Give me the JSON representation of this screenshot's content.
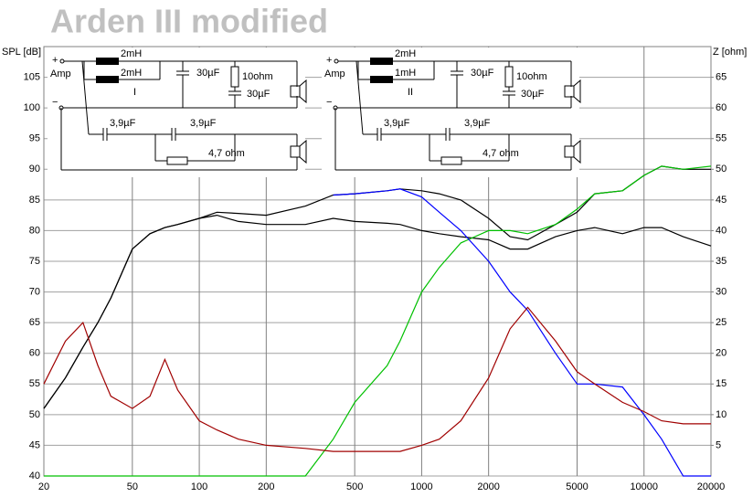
{
  "chart_data": {
    "type": "line",
    "title": "Arden  III modified",
    "y_label": "SPL [dB]",
    "y2_label": "Z [ohm]",
    "log_x": true,
    "grid": true,
    "xlim": [
      20,
      20000
    ],
    "xticks": [
      20,
      50,
      100,
      200,
      500,
      1000,
      2000,
      5000,
      10000,
      20000
    ],
    "ylim": [
      40,
      110
    ],
    "yticks": [
      40,
      45,
      50,
      55,
      60,
      65,
      70,
      75,
      80,
      85,
      90,
      95,
      100,
      105
    ],
    "y2lim": [
      0,
      70
    ],
    "y2ticks": [
      5,
      10,
      15,
      20,
      25,
      30,
      35,
      40,
      45,
      50,
      55,
      60,
      65
    ],
    "x": [
      20,
      25,
      30,
      35,
      40,
      50,
      60,
      70,
      80,
      100,
      120,
      150,
      200,
      300,
      400,
      500,
      700,
      800,
      1000,
      1200,
      1500,
      2000,
      2500,
      3000,
      4000,
      5000,
      6000,
      8000,
      10000,
      12000,
      15000,
      20000
    ],
    "series": [
      {
        "color": "#000000",
        "values": [
          51,
          56,
          61,
          65,
          69,
          77,
          79.5,
          80.5,
          81,
          82,
          83,
          82.8,
          82.5,
          84,
          85.8,
          86,
          86.5,
          86.8,
          86.5,
          86,
          85,
          82,
          79,
          78.5,
          81,
          83,
          86,
          86.5,
          89,
          90.5,
          90,
          90
        ]
      },
      {
        "color": "#000000",
        "values": [
          51,
          56,
          61,
          65,
          69,
          77,
          79.5,
          80.5,
          81,
          82,
          82.5,
          81.5,
          81,
          81,
          82,
          81.5,
          81.2,
          81,
          80,
          79.5,
          79,
          78.5,
          77,
          77,
          79,
          80,
          80.5,
          79.5,
          80.5,
          80.5,
          79,
          77.5
        ]
      },
      {
        "color": "#00c000",
        "values": [
          40,
          40,
          40,
          40,
          40,
          40,
          40,
          40,
          40,
          40,
          40,
          40,
          40,
          40,
          46,
          52,
          58,
          62,
          70,
          74,
          78,
          80,
          80,
          79.5,
          81,
          83.5,
          86,
          86.5,
          89,
          90.5,
          90,
          90.5
        ]
      },
      {
        "color": "#0000ff",
        "values": [
          null,
          null,
          null,
          null,
          null,
          null,
          null,
          null,
          null,
          null,
          null,
          null,
          null,
          null,
          85.8,
          86,
          86.5,
          86.8,
          85.5,
          83,
          80,
          75,
          70,
          67,
          60,
          55,
          55,
          54.5,
          50,
          46,
          40,
          40
        ]
      },
      {
        "color": "#a00000",
        "axis": "y2",
        "values": [
          15,
          22,
          25,
          18,
          13,
          11,
          13,
          19,
          14,
          9,
          7.5,
          6,
          5,
          4.5,
          4,
          4,
          4,
          4,
          5,
          6,
          9,
          16,
          24,
          27.5,
          22,
          17,
          15,
          12,
          10.5,
          9,
          8.5,
          8.5
        ]
      }
    ],
    "schematics": [
      {
        "plus": "+",
        "minus": "−",
        "amp": "Amp",
        "label": "I",
        "l1": "2mH",
        "l2": "2mH",
        "c1": "30µF",
        "r1": "10ohm",
        "c2": "30µF",
        "c3": "3,9µF",
        "c4": "3,9µF",
        "r2": "4,7 ohm"
      },
      {
        "plus": "+",
        "minus": "−",
        "amp": "Amp",
        "label": "II",
        "l1": "2mH",
        "l2": "1mH",
        "c1": "30µF",
        "r1": "10ohm",
        "c2": "30µF",
        "c3": "3,9µF",
        "c4": "3,9µF",
        "r2": "4,7 ohm"
      }
    ]
  }
}
